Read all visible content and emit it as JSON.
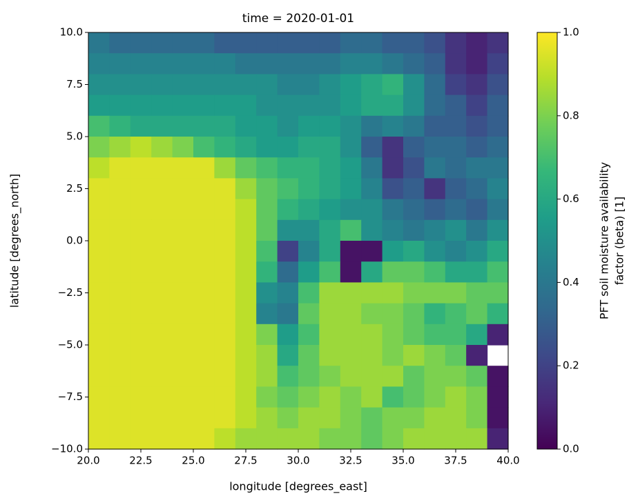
{
  "chart_data": {
    "type": "heatmap",
    "title": "time = 2020-01-01",
    "x_label": "longitude [degrees_east]",
    "y_label": "latitude [degrees_north]",
    "colorbar_label": [
      "PFT soil moisture availability",
      "factor (beta) [1]"
    ],
    "colormap": "viridis",
    "xlim": [
      20,
      40
    ],
    "ylim": [
      -10,
      10
    ],
    "clim": [
      0,
      1
    ],
    "xticks": [
      {
        "value": 20,
        "label": "20.0"
      },
      22.5,
      {
        "value": 25,
        "label": "25.0"
      },
      27.5,
      {
        "value": 30,
        "label": "30.0"
      },
      32.5,
      {
        "value": 35,
        "label": "35.0"
      },
      37.5,
      {
        "value": 40,
        "label": "40.0"
      }
    ],
    "yticks": [
      {
        "value": -10,
        "label": "−10.0"
      },
      {
        "value": -7.5,
        "label": "−7.5"
      },
      {
        "value": -5,
        "label": "−5.0"
      },
      {
        "value": -2.5,
        "label": "−2.5"
      },
      {
        "value": 0,
        "label": "0.0"
      },
      2.5,
      {
        "value": 5,
        "label": "5.0"
      },
      7.5,
      {
        "value": 10,
        "label": "10.0"
      }
    ],
    "cticks": [
      {
        "value": 0,
        "label": "0.0"
      },
      0.2,
      0.4,
      0.6,
      0.8,
      {
        "value": 1,
        "label": "1.0"
      }
    ],
    "x": [
      20.5,
      21.5,
      22.5,
      23.5,
      24.5,
      25.5,
      26.5,
      27.5,
      28.5,
      29.5,
      30.5,
      31.5,
      32.5,
      33.5,
      34.5,
      35.5,
      36.5,
      37.5,
      38.5,
      39.5
    ],
    "y": [
      9.5,
      8.5,
      7.5,
      6.5,
      5.5,
      4.5,
      3.5,
      2.5,
      1.5,
      0.5,
      -0.5,
      -1.5,
      -2.5,
      -3.5,
      -4.5,
      -5.5,
      -6.5,
      -7.5,
      -8.5,
      -9.5
    ],
    "z": [
      [
        0.4,
        0.35,
        0.35,
        0.35,
        0.35,
        0.35,
        0.3,
        0.3,
        0.3,
        0.3,
        0.3,
        0.3,
        0.35,
        0.35,
        0.3,
        0.3,
        0.25,
        0.15,
        0.1,
        0.15
      ],
      [
        0.45,
        0.45,
        0.45,
        0.45,
        0.45,
        0.45,
        0.45,
        0.4,
        0.4,
        0.4,
        0.4,
        0.4,
        0.45,
        0.45,
        0.4,
        0.35,
        0.3,
        0.15,
        0.1,
        0.2
      ],
      [
        0.5,
        0.5,
        0.5,
        0.5,
        0.5,
        0.5,
        0.5,
        0.5,
        0.5,
        0.45,
        0.45,
        0.5,
        0.55,
        0.6,
        0.65,
        0.5,
        0.35,
        0.2,
        0.15,
        0.25
      ],
      [
        0.55,
        0.55,
        0.55,
        0.55,
        0.55,
        0.55,
        0.55,
        0.55,
        0.5,
        0.5,
        0.5,
        0.5,
        0.55,
        0.6,
        0.6,
        0.5,
        0.35,
        0.3,
        0.2,
        0.3
      ],
      [
        0.7,
        0.65,
        0.6,
        0.6,
        0.6,
        0.6,
        0.6,
        0.55,
        0.55,
        0.5,
        0.55,
        0.55,
        0.5,
        0.4,
        0.45,
        0.4,
        0.3,
        0.3,
        0.25,
        0.3
      ],
      [
        0.8,
        0.85,
        0.9,
        0.85,
        0.8,
        0.7,
        0.65,
        0.6,
        0.55,
        0.55,
        0.6,
        0.6,
        0.5,
        0.3,
        0.15,
        0.3,
        0.35,
        0.35,
        0.3,
        0.35
      ],
      [
        0.9,
        0.95,
        0.95,
        0.95,
        0.95,
        0.95,
        0.85,
        0.75,
        0.7,
        0.65,
        0.65,
        0.6,
        0.55,
        0.4,
        0.15,
        0.25,
        0.4,
        0.35,
        0.4,
        0.4
      ],
      [
        0.95,
        0.95,
        0.95,
        0.95,
        0.95,
        0.95,
        0.95,
        0.85,
        0.75,
        0.7,
        0.65,
        0.6,
        0.55,
        0.45,
        0.25,
        0.3,
        0.15,
        0.3,
        0.35,
        0.45
      ],
      [
        0.95,
        0.95,
        0.95,
        0.95,
        0.95,
        0.95,
        0.95,
        0.9,
        0.75,
        0.65,
        0.6,
        0.55,
        0.5,
        0.5,
        0.4,
        0.35,
        0.3,
        0.35,
        0.3,
        0.4
      ],
      [
        0.95,
        0.95,
        0.95,
        0.95,
        0.95,
        0.95,
        0.95,
        0.9,
        0.75,
        0.5,
        0.5,
        0.6,
        0.7,
        0.5,
        0.45,
        0.4,
        0.45,
        0.5,
        0.4,
        0.5
      ],
      [
        0.95,
        0.95,
        0.95,
        0.95,
        0.95,
        0.95,
        0.95,
        0.9,
        0.7,
        0.2,
        0.45,
        0.6,
        0.05,
        0.05,
        0.55,
        0.6,
        0.5,
        0.45,
        0.5,
        0.6
      ],
      [
        0.95,
        0.95,
        0.95,
        0.95,
        0.95,
        0.95,
        0.95,
        0.9,
        0.65,
        0.35,
        0.55,
        0.7,
        0.05,
        0.6,
        0.75,
        0.75,
        0.7,
        0.6,
        0.6,
        0.7
      ],
      [
        0.95,
        0.95,
        0.95,
        0.95,
        0.95,
        0.95,
        0.95,
        0.9,
        0.5,
        0.45,
        0.7,
        0.85,
        0.85,
        0.85,
        0.85,
        0.8,
        0.8,
        0.8,
        0.75,
        0.75
      ],
      [
        0.95,
        0.95,
        0.95,
        0.95,
        0.95,
        0.95,
        0.95,
        0.9,
        0.45,
        0.4,
        0.75,
        0.85,
        0.85,
        0.8,
        0.8,
        0.75,
        0.65,
        0.7,
        0.75,
        0.65
      ],
      [
        0.95,
        0.95,
        0.95,
        0.95,
        0.95,
        0.95,
        0.95,
        0.9,
        0.8,
        0.55,
        0.7,
        0.85,
        0.85,
        0.85,
        0.8,
        0.75,
        0.7,
        0.7,
        0.6,
        0.1
      ],
      [
        0.95,
        0.95,
        0.95,
        0.95,
        0.95,
        0.95,
        0.95,
        0.9,
        0.85,
        0.6,
        0.75,
        0.85,
        0.85,
        0.85,
        0.8,
        0.85,
        0.8,
        0.75,
        0.1,
        null
      ],
      [
        0.95,
        0.95,
        0.95,
        0.95,
        0.95,
        0.95,
        0.95,
        0.9,
        0.85,
        0.7,
        0.75,
        0.8,
        0.85,
        0.85,
        0.85,
        0.75,
        0.8,
        0.8,
        0.75,
        0.05
      ],
      [
        0.95,
        0.95,
        0.95,
        0.95,
        0.95,
        0.95,
        0.95,
        0.9,
        0.8,
        0.75,
        0.8,
        0.85,
        0.8,
        0.85,
        0.7,
        0.75,
        0.8,
        0.85,
        0.8,
        0.05
      ],
      [
        0.95,
        0.95,
        0.95,
        0.95,
        0.95,
        0.95,
        0.95,
        0.9,
        0.85,
        0.8,
        0.85,
        0.85,
        0.8,
        0.75,
        0.8,
        0.8,
        0.85,
        0.85,
        0.8,
        0.05
      ],
      [
        0.95,
        0.95,
        0.95,
        0.95,
        0.95,
        0.95,
        0.9,
        0.85,
        0.85,
        0.85,
        0.85,
        0.8,
        0.8,
        0.75,
        0.8,
        0.85,
        0.85,
        0.85,
        0.85,
        0.1
      ]
    ]
  }
}
